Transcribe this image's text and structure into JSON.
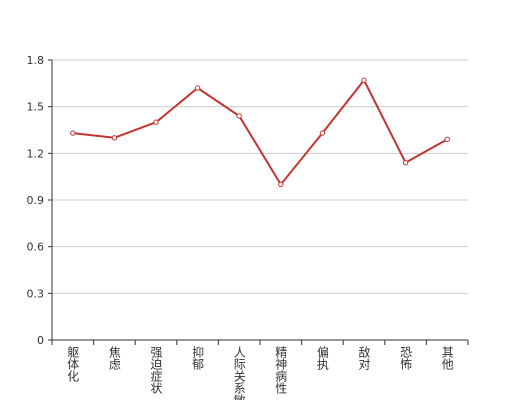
{
  "chart_data": {
    "type": "line",
    "categories": [
      "躯体化",
      "焦虑",
      "强迫症状",
      "抑郁",
      "人际关系敏感",
      "精神病性",
      "偏执",
      "敌对",
      "恐怖",
      "其他"
    ],
    "series": [
      {
        "color": "#c23531",
        "values": [
          1.33,
          1.3,
          1.4,
          1.62,
          1.44,
          1.0,
          1.33,
          1.67,
          1.14,
          1.29
        ]
      }
    ],
    "ylim": [
      0,
      1.8
    ],
    "yticks": [
      0,
      0.3,
      0.6,
      0.9,
      1.2,
      1.5,
      1.8
    ],
    "grid": true
  }
}
